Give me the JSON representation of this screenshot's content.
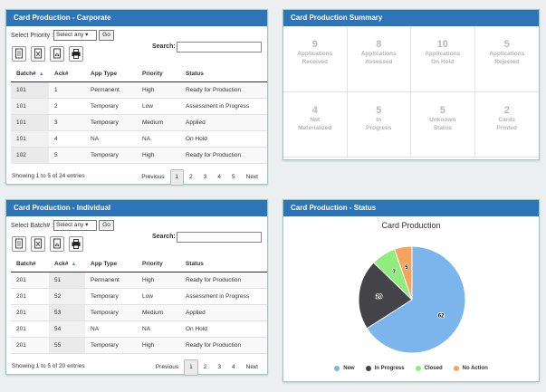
{
  "corporate": {
    "title": "Card Production - Carporate",
    "select_label": "Select Priority :",
    "select_value": "Select any",
    "go_label": "Go",
    "search_label": "Search:",
    "columns": [
      "Batch#",
      "Ack#",
      "App Type",
      "Priority",
      "Status"
    ],
    "rows": [
      [
        "101",
        "1",
        "Permanent",
        "High",
        "Ready for Production"
      ],
      [
        "101",
        "2",
        "Temporary",
        "Low",
        "Assessment in Progress"
      ],
      [
        "101",
        "3",
        "Temporary",
        "Medium",
        "Applied"
      ],
      [
        "101",
        "4",
        "NA",
        "NA",
        "On Hold"
      ],
      [
        "102",
        "5",
        "Temporary",
        "High",
        "Ready for Production"
      ]
    ],
    "info": "Showing 1 to 5 of 24 entries",
    "pager": [
      "Previous",
      "1",
      "2",
      "3",
      "4",
      "5",
      "Next"
    ]
  },
  "individual": {
    "title": "Card Production - Individual",
    "select_label": "Select Batch# :",
    "select_value": "Select any",
    "go_label": "Go",
    "search_label": "Search:",
    "columns": [
      "Batch#",
      "Ack#",
      "App Type",
      "Priority",
      "Status"
    ],
    "rows": [
      [
        "201",
        "51",
        "Permanent",
        "High",
        "Ready for Production"
      ],
      [
        "201",
        "52",
        "Temporary",
        "Low",
        "Assessment in Progress"
      ],
      [
        "201",
        "53",
        "Temporary",
        "Medium",
        "Applied"
      ],
      [
        "201",
        "54",
        "NA",
        "NA",
        "On Hold"
      ],
      [
        "201",
        "55",
        "Temporary",
        "High",
        "Ready for Production"
      ]
    ],
    "info": "Showing 1 to 5 of 20 entries",
    "pager": [
      "Previous",
      "1",
      "2",
      "3",
      "4",
      "Next"
    ]
  },
  "summary": {
    "title": "Card Production Summary",
    "stats": [
      {
        "value": "9",
        "label1": "Applications",
        "label2": "Received"
      },
      {
        "value": "8",
        "label1": "Applications",
        "label2": "Assessed"
      },
      {
        "value": "10",
        "label1": "Applications",
        "label2": "On Hold"
      },
      {
        "value": "5",
        "label1": "Applications",
        "label2": "Rejected"
      },
      {
        "value": "4",
        "label1": "Not",
        "label2": "Materialized"
      },
      {
        "value": "5",
        "label1": "In",
        "label2": "Progress"
      },
      {
        "value": "5",
        "label1": "Unknown",
        "label2": "Status"
      },
      {
        "value": "2",
        "label1": "Cards",
        "label2": "Printed"
      }
    ]
  },
  "status": {
    "title": "Card Production - Status"
  },
  "export_icons": [
    "copy-icon",
    "excel-icon",
    "pdf-icon",
    "print-icon"
  ],
  "chart_data": {
    "type": "pie",
    "title": "Card Production",
    "categories": [
      "New",
      "In Progress",
      "Closed",
      "No Action"
    ],
    "values": [
      62,
      20,
      7,
      5
    ],
    "colors": [
      "#7cb5ec",
      "#434348",
      "#90ed7d",
      "#f7a35c"
    ],
    "legend": "bottom"
  }
}
